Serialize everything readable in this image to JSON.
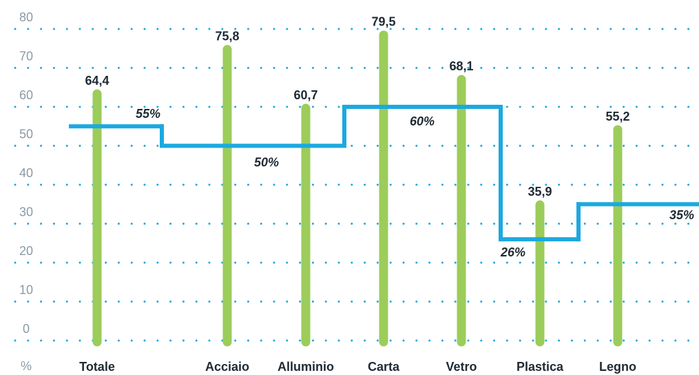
{
  "chart_data": {
    "type": "bar",
    "y_label": "%",
    "categories": [
      "Totale",
      "Acciaio",
      "Alluminio",
      "Carta",
      "Vetro",
      "Plastica",
      "Legno"
    ],
    "series": [
      {
        "color": "#9ccc5a",
        "values": [
          64.4,
          75.8,
          60.7,
          79.5,
          68.1,
          35.9,
          55.2
        ],
        "value_labels": [
          "64,4",
          "75,8",
          "60,7",
          "79,5",
          "68,1",
          "35,9",
          "55,2"
        ]
      },
      {
        "type": "step",
        "color": "#1ba9e0",
        "values": [
          55,
          50,
          50,
          60,
          60,
          26,
          35
        ],
        "value_labels": [
          "55%",
          "50%",
          null,
          "60%",
          null,
          "26%",
          "35%"
        ]
      }
    ],
    "ylim": [
      0,
      80
    ],
    "yticks": [
      0,
      10,
      20,
      30,
      40,
      50,
      60,
      70,
      80
    ],
    "grid": true,
    "grid_color": "#1ba9e0"
  }
}
